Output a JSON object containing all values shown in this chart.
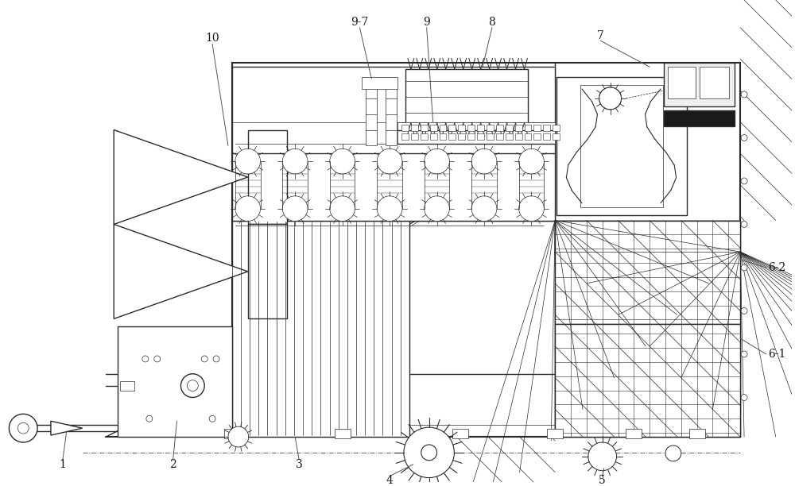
{
  "bg_color": "#ffffff",
  "line_color": "#2a2a2a",
  "label_color": "#1a1a1a",
  "fig_width": 10.0,
  "fig_height": 6.12,
  "lw_main": 1.0,
  "lw_thin": 0.5,
  "lw_thick": 1.5
}
